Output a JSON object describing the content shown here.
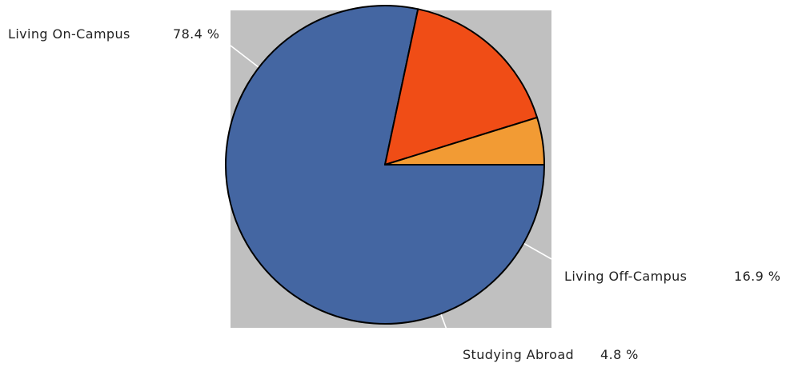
{
  "chart_data": {
    "type": "pie",
    "categories": [
      "Living On-Campus",
      "Living Off-Campus",
      "Studying Abroad"
    ],
    "values": [
      78.4,
      16.9,
      4.8
    ],
    "value_labels": [
      "78.4 %",
      "16.9 %",
      "4.8 %"
    ],
    "colors": [
      "#4466a2",
      "#f04d16",
      "#f29b34"
    ],
    "plot_background": "#c0c0c0",
    "leader_line_color": "#ffffff",
    "slice_border_color": "#000000",
    "start_angle_deg": 0,
    "direction": "clockwise",
    "legend": "none",
    "title": ""
  }
}
